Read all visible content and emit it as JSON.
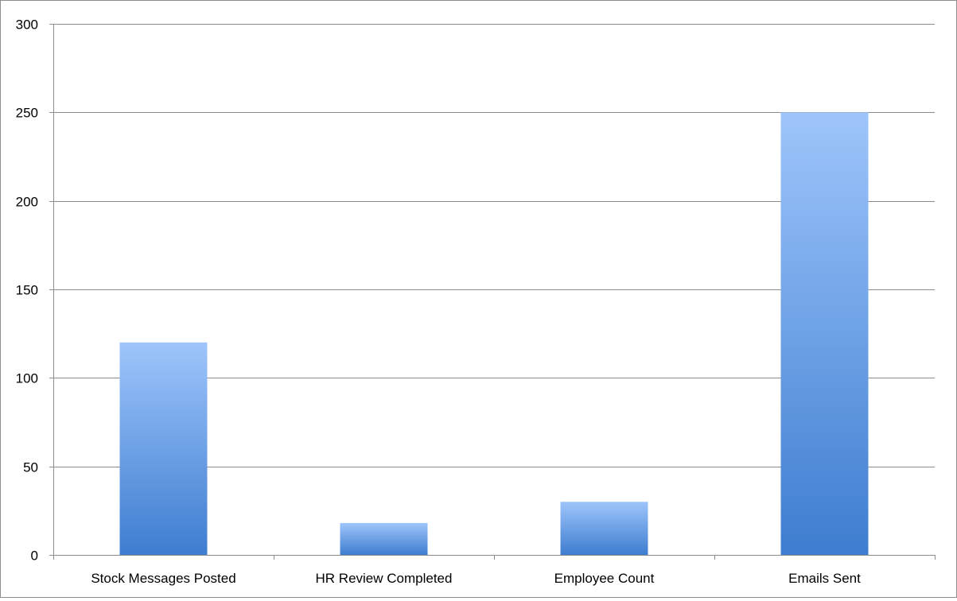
{
  "chart_data": {
    "type": "bar",
    "title": "",
    "xlabel": "",
    "ylabel": "",
    "categories": [
      "Stock Messages Posted",
      "HR Review Completed",
      "Employee Count",
      "Emails Sent"
    ],
    "values": [
      120,
      18,
      30,
      250
    ],
    "ylim": [
      0,
      300
    ],
    "yticks": [
      0,
      50,
      100,
      150,
      200,
      250,
      300
    ],
    "grid": true,
    "legend": "none",
    "colors": {
      "bar_top": "#9ec5fb",
      "bar_bottom": "#3e7dd0",
      "grid": "#8c8c8c",
      "axis": "#8c8c8c"
    }
  }
}
